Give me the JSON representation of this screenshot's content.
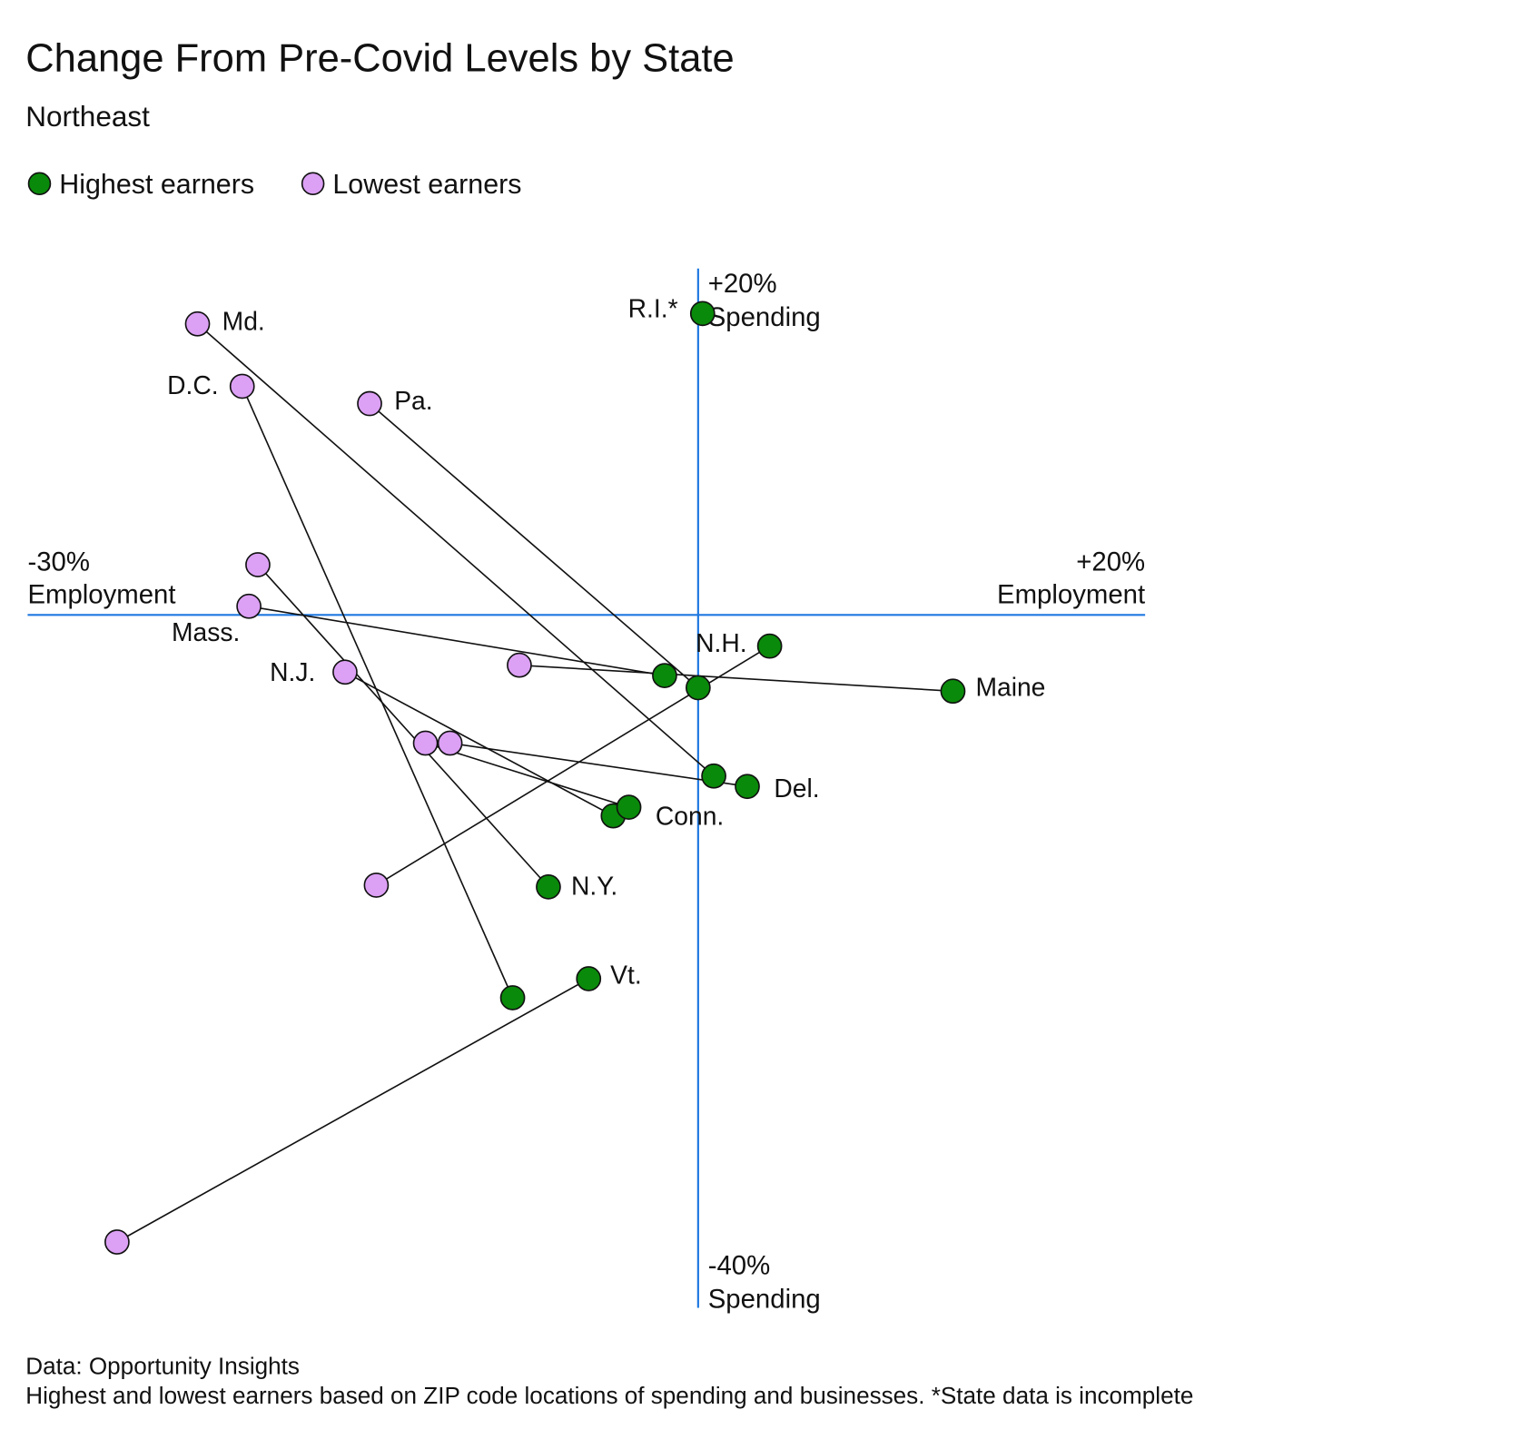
{
  "chart_data": {
    "type": "connected_scatter",
    "title": "Change From Pre-Covid Levels by State",
    "subtitle": "Northeast",
    "xlabel": "Employment",
    "ylabel": "Spending",
    "xlim": [
      -30,
      20
    ],
    "ylim": [
      -40,
      20
    ],
    "xticks": [
      {
        "value": -30,
        "label": "-30%"
      },
      {
        "value": 20,
        "label": "+20%"
      }
    ],
    "yticks": [
      {
        "value": 20,
        "label": "+20%"
      },
      {
        "value": -40,
        "label": "-40%"
      }
    ],
    "axis_color": "#1f78e0",
    "categories": [
      "Md.",
      "D.C.",
      "Pa.",
      "R.I.*",
      "Mass.",
      "N.J.",
      "Maine",
      "Del.",
      "Conn.",
      "N.H.",
      "N.Y.",
      "Vt."
    ],
    "series": [
      {
        "name": "Highest earners",
        "color": "#0a8a0a",
        "x": [
          0.7,
          -8.3,
          0.0,
          0.2,
          -1.5,
          -3.8,
          11.4,
          2.2,
          -3.1,
          3.2,
          -6.7,
          -4.9
        ],
        "values": [
          -9.3,
          -22.1,
          -4.2,
          17.4,
          -3.5,
          -11.6,
          -4.4,
          -9.9,
          -11.1,
          -1.8,
          -15.7,
          -21.0
        ]
      },
      {
        "name": "Lowest earners",
        "color": "#dca0f5",
        "x": [
          -22.4,
          -20.4,
          -14.7,
          null,
          -20.1,
          -15.8,
          -8.0,
          -11.1,
          -12.2,
          -14.4,
          -19.7,
          -26.0
        ],
        "values": [
          16.8,
          13.2,
          12.2,
          null,
          0.5,
          -3.3,
          -2.9,
          -7.4,
          -7.4,
          -15.6,
          2.9,
          -36.2
        ]
      }
    ],
    "source": "Data: Opportunity Insights",
    "note": "Highest and lowest earners based on ZIP code locations of spending and businesses. *State data is incomplete"
  }
}
